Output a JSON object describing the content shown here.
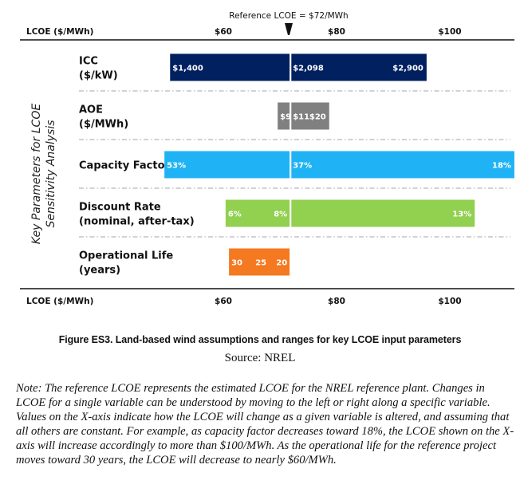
{
  "chart_data": {
    "type": "bar",
    "orientation": "horizontal-range",
    "title": "Reference LCOE = $72/MWh",
    "reference_value": 72,
    "xlabel": "LCOE ($/MWh)",
    "ylabel": "Key Parameters for LCOE Sensitivity Analysis",
    "ylabel_lines": [
      "Key Parameters for LCOE",
      "Sensitivity Analysis"
    ],
    "xlim": [
      50,
      111.5
    ],
    "xticks": [
      60,
      80,
      100
    ],
    "xtick_labels": [
      "$60",
      "$80",
      "$100"
    ],
    "grid": false,
    "series": [
      {
        "name": "ICC",
        "label_lines": [
          "ICC",
          "($/kW)"
        ],
        "color": "#002060",
        "low": 50.6,
        "high": 95.9,
        "labels": [
          "$1,400",
          "$2,098",
          "$2,900"
        ],
        "label_positions": [
          "low",
          "reference",
          "high"
        ]
      },
      {
        "name": "AOE",
        "label_lines": [
          "AOE",
          "($/MWh)"
        ],
        "color": "#808080",
        "low": 69.6,
        "high": 78.7,
        "labels": [
          "$9",
          "$11",
          "$20"
        ],
        "label_positions": [
          "low",
          "reference",
          "high"
        ]
      },
      {
        "name": "Capacity Factor",
        "label_lines": [
          "Capacity Factor"
        ],
        "color": "#1FB3F5",
        "low": 49.6,
        "high": 111.4,
        "labels": [
          "53%",
          "37%",
          "18%"
        ],
        "label_positions": [
          "low",
          "reference",
          "high"
        ]
      },
      {
        "name": "Discount Rate",
        "label_lines": [
          "Discount Rate",
          "(nominal, after-tax)"
        ],
        "color": "#92D050",
        "low": 60.4,
        "high": 104.4,
        "labels": [
          "6%",
          "8%",
          "13%"
        ],
        "label_positions": [
          "low",
          "reference-left",
          "high"
        ]
      },
      {
        "name": "Operational Life",
        "label_lines": [
          "Operational Life",
          "(years)"
        ],
        "color": "#F47920",
        "low": 61.0,
        "high": 72.0,
        "labels": [
          "30",
          "25",
          "20"
        ],
        "label_positions": [
          "low",
          "mid",
          "reference-left"
        ]
      }
    ]
  },
  "caption": "Figure ES3. Land-based wind assumptions and ranges for key LCOE input parameters",
  "source": "Source: NREL",
  "note": "Note: The reference LCOE represents the estimated LCOE for the NREL reference plant. Changes in LCOE for a single variable can be understood by moving to the left or right along a specific variable. Values on the X-axis indicate how the LCOE will change as a given variable is altered, and assuming that all others are constant. For example, as capacity factor decreases toward 18%, the LCOE shown on the X-axis will increase accordingly to more than $100/MWh. As the operational life for the reference project moves toward 30 years, the LCOE will decrease to nearly $60/MWh."
}
